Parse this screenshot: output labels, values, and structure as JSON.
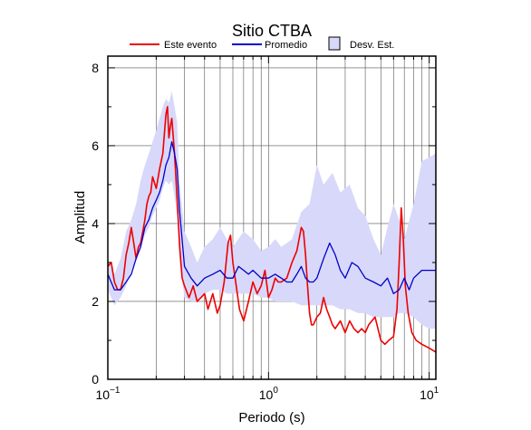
{
  "chart_data": {
    "type": "line",
    "title": "Sitio CTBA",
    "xlabel": "Periodo (s)",
    "ylabel": "Amplitud",
    "x_scale": "log",
    "xlim": [
      0.1,
      11
    ],
    "ylim": [
      0,
      8.3
    ],
    "x_ticks": [
      {
        "value": 0.1,
        "base": "10",
        "exp": "−1"
      },
      {
        "value": 1,
        "base": "10",
        "exp": "0"
      },
      {
        "value": 10,
        "base": "10",
        "exp": "1"
      }
    ],
    "y_ticks": [
      0,
      2,
      4,
      6,
      8
    ],
    "grid": "vertical",
    "legend": [
      {
        "label": "Este evento",
        "color": "#ee0000",
        "kind": "line"
      },
      {
        "label": "Promedio",
        "color": "#0000cc",
        "kind": "line"
      },
      {
        "label": "Desv. Est.",
        "color": "#d8d8fa",
        "kind": "patch"
      }
    ],
    "std_band": {
      "x": [
        0.1,
        0.11,
        0.12,
        0.13,
        0.14,
        0.15,
        0.16,
        0.17,
        0.18,
        0.19,
        0.2,
        0.21,
        0.22,
        0.23,
        0.24,
        0.25,
        0.26,
        0.27,
        0.28,
        0.3,
        0.33,
        0.36,
        0.4,
        0.45,
        0.5,
        0.55,
        0.6,
        0.7,
        0.8,
        0.9,
        1.0,
        1.1,
        1.2,
        1.4,
        1.6,
        1.8,
        2.0,
        2.2,
        2.5,
        2.8,
        3.2,
        3.6,
        4.0,
        4.5,
        5.0,
        5.5,
        6.0,
        6.5,
        7.0,
        8.0,
        9.0,
        10.0,
        11.0
      ],
      "upper": [
        3.1,
        2.7,
        3.1,
        3.8,
        4.1,
        4.5,
        5.1,
        5.5,
        5.8,
        6.1,
        6.4,
        6.7,
        7.0,
        7.2,
        7.1,
        7.4,
        7.0,
        6.6,
        5.0,
        3.8,
        3.4,
        3.0,
        3.4,
        3.6,
        3.9,
        3.6,
        3.4,
        3.8,
        3.6,
        3.3,
        3.4,
        3.6,
        3.4,
        3.6,
        4.3,
        4.5,
        5.5,
        5.0,
        5.3,
        4.8,
        5.0,
        4.4,
        4.2,
        3.6,
        3.2,
        3.9,
        4.5,
        4.1,
        3.6,
        4.5,
        5.6,
        5.7,
        5.8
      ],
      "lower": [
        2.3,
        1.9,
        2.1,
        2.4,
        2.8,
        3.1,
        3.4,
        3.7,
        3.9,
        4.2,
        4.4,
        4.6,
        4.9,
        5.1,
        5.0,
        5.1,
        4.7,
        4.2,
        3.0,
        2.1,
        2.0,
        2.0,
        2.2,
        2.3,
        2.3,
        2.2,
        2.2,
        2.2,
        2.2,
        2.1,
        2.1,
        2.0,
        2.0,
        2.0,
        1.9,
        1.9,
        1.9,
        1.9,
        1.9,
        1.8,
        1.8,
        1.7,
        1.7,
        1.6,
        1.6,
        1.6,
        1.6,
        1.7,
        1.7,
        1.6,
        1.4,
        1.3,
        1.3
      ]
    },
    "series": [
      {
        "name": "Este evento",
        "color": "#ee0000",
        "x": [
          0.1,
          0.105,
          0.11,
          0.115,
          0.12,
          0.125,
          0.13,
          0.135,
          0.14,
          0.145,
          0.15,
          0.155,
          0.16,
          0.165,
          0.17,
          0.175,
          0.18,
          0.185,
          0.19,
          0.2,
          0.21,
          0.22,
          0.23,
          0.235,
          0.24,
          0.245,
          0.25,
          0.26,
          0.27,
          0.28,
          0.29,
          0.3,
          0.32,
          0.34,
          0.36,
          0.38,
          0.4,
          0.42,
          0.45,
          0.48,
          0.5,
          0.53,
          0.56,
          0.58,
          0.6,
          0.63,
          0.66,
          0.7,
          0.75,
          0.8,
          0.85,
          0.9,
          0.95,
          1.0,
          1.05,
          1.1,
          1.15,
          1.2,
          1.3,
          1.4,
          1.5,
          1.6,
          1.65,
          1.7,
          1.75,
          1.8,
          1.85,
          1.9,
          2.0,
          2.1,
          2.2,
          2.3,
          2.4,
          2.5,
          2.6,
          2.8,
          3.0,
          3.2,
          3.4,
          3.6,
          3.8,
          4.0,
          4.2,
          4.4,
          4.6,
          4.8,
          5.0,
          5.3,
          5.6,
          6.0,
          6.3,
          6.5,
          6.7,
          6.9,
          7.1,
          7.4,
          7.8,
          8.3,
          9.0,
          10.0,
          11.0
        ],
        "y": [
          2.9,
          3.0,
          2.5,
          2.3,
          2.3,
          2.6,
          3.2,
          3.5,
          3.9,
          3.5,
          3.1,
          3.4,
          3.5,
          3.8,
          4.1,
          4.5,
          4.7,
          4.8,
          5.2,
          4.9,
          5.4,
          5.8,
          6.8,
          7.0,
          6.2,
          6.5,
          6.7,
          5.8,
          4.6,
          3.4,
          2.6,
          2.4,
          2.1,
          2.4,
          2.0,
          2.1,
          2.2,
          1.8,
          2.2,
          1.7,
          1.9,
          2.5,
          3.5,
          3.7,
          3.0,
          2.4,
          1.8,
          1.5,
          2.0,
          2.5,
          2.2,
          2.4,
          2.8,
          2.1,
          2.3,
          2.6,
          2.5,
          2.5,
          2.6,
          3.0,
          3.3,
          3.9,
          3.8,
          3.2,
          2.4,
          1.7,
          1.4,
          1.4,
          1.6,
          1.7,
          2.1,
          1.8,
          1.6,
          1.4,
          1.3,
          1.5,
          1.2,
          1.5,
          1.3,
          1.2,
          1.3,
          1.2,
          1.4,
          1.5,
          1.6,
          1.3,
          1.0,
          0.9,
          1.0,
          1.1,
          1.8,
          3.0,
          4.4,
          3.6,
          2.4,
          1.7,
          1.2,
          1.0,
          0.9,
          0.8,
          0.7
        ]
      },
      {
        "name": "Promedio",
        "color": "#0000cc",
        "x": [
          0.1,
          0.11,
          0.12,
          0.13,
          0.14,
          0.15,
          0.16,
          0.17,
          0.18,
          0.19,
          0.2,
          0.21,
          0.22,
          0.23,
          0.24,
          0.25,
          0.26,
          0.27,
          0.28,
          0.3,
          0.33,
          0.36,
          0.4,
          0.45,
          0.5,
          0.55,
          0.6,
          0.65,
          0.7,
          0.75,
          0.8,
          0.9,
          1.0,
          1.1,
          1.2,
          1.3,
          1.4,
          1.5,
          1.6,
          1.7,
          1.8,
          1.9,
          2.0,
          2.2,
          2.4,
          2.6,
          2.8,
          3.0,
          3.3,
          3.6,
          4.0,
          4.5,
          5.0,
          5.5,
          6.0,
          6.5,
          7.0,
          7.5,
          8.0,
          9.0,
          10.0,
          11.0
        ],
        "y": [
          2.7,
          2.3,
          2.3,
          2.5,
          2.7,
          3.1,
          3.4,
          3.9,
          4.1,
          4.4,
          4.6,
          4.8,
          5.1,
          5.5,
          5.7,
          6.1,
          5.8,
          5.4,
          4.3,
          2.9,
          2.6,
          2.4,
          2.6,
          2.7,
          2.8,
          2.6,
          2.6,
          2.9,
          2.8,
          2.7,
          2.8,
          2.6,
          2.6,
          2.7,
          2.6,
          2.5,
          2.5,
          2.7,
          2.9,
          2.6,
          2.5,
          2.5,
          2.6,
          3.1,
          3.5,
          3.2,
          2.8,
          2.6,
          3.0,
          2.9,
          2.6,
          2.5,
          2.4,
          2.6,
          2.2,
          2.3,
          2.6,
          2.3,
          2.6,
          2.8,
          2.8,
          2.8
        ]
      }
    ]
  }
}
